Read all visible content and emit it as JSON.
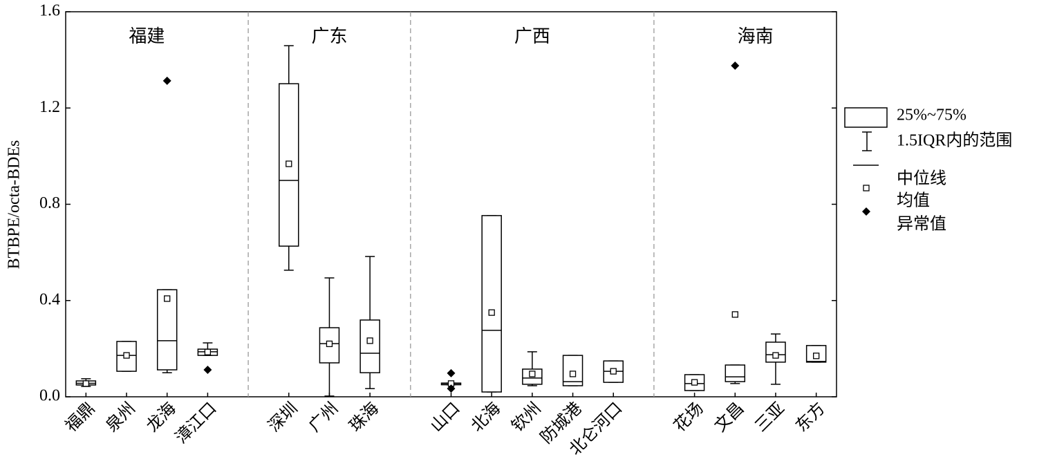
{
  "chart_data": {
    "type": "box",
    "ylabel": "BTBPE/octa-BDEs",
    "ylim": [
      0,
      1.6
    ],
    "yticks": [
      {
        "value": 0,
        "label": "0.0"
      },
      0.4,
      0.8,
      1.2,
      1.6
    ],
    "groups": [
      {
        "name": "福建",
        "categories": [
          "福鼎",
          "泉州",
          "龙海",
          "漳江口"
        ]
      },
      {
        "name": "广东",
        "categories": [
          "深圳",
          "广州",
          "珠海"
        ]
      },
      {
        "name": "广西",
        "categories": [
          "山口",
          "北海",
          "钦州",
          "防城港",
          "北仑河口"
        ]
      },
      {
        "name": "海南",
        "categories": [
          "花场",
          "文昌",
          "三亚",
          "东方"
        ]
      }
    ],
    "boxes": [
      {
        "whislo": 0.043,
        "q1": 0.049,
        "med": 0.056,
        "q3": 0.066,
        "whishi": 0.075,
        "mean": 0.055,
        "fliers": []
      },
      {
        "whislo": 0.106,
        "q1": 0.106,
        "med": 0.172,
        "q3": 0.23,
        "whishi": 0.23,
        "mean": 0.172,
        "fliers": []
      },
      {
        "whislo": 0.1,
        "q1": 0.112,
        "med": 0.233,
        "q3": 0.445,
        "whishi": 0.445,
        "mean": 0.408,
        "fliers": [
          1.313
        ]
      },
      {
        "whislo": 0.172,
        "q1": 0.172,
        "med": 0.187,
        "q3": 0.198,
        "whishi": 0.224,
        "mean": 0.186,
        "fliers": [
          0.112
        ]
      },
      {
        "whislo": 0.526,
        "q1": 0.626,
        "med": 0.899,
        "q3": 1.301,
        "whishi": 1.459,
        "mean": 0.968,
        "fliers": []
      },
      {
        "whislo": 0.003,
        "q1": 0.141,
        "med": 0.221,
        "q3": 0.287,
        "whishi": 0.494,
        "mean": 0.22,
        "fliers": []
      },
      {
        "whislo": 0.034,
        "q1": 0.1,
        "med": 0.181,
        "q3": 0.319,
        "whishi": 0.583,
        "mean": 0.233,
        "fliers": []
      },
      {
        "whislo": 0.05,
        "q1": 0.05,
        "med": 0.055,
        "q3": 0.057,
        "whishi": 0.057,
        "mean": 0.055,
        "fliers": [
          0.098,
          0.034
        ]
      },
      {
        "whislo": 0.02,
        "q1": 0.02,
        "med": 0.276,
        "q3": 0.753,
        "whishi": 0.753,
        "mean": 0.35,
        "fliers": []
      },
      {
        "whislo": 0.046,
        "q1": 0.052,
        "med": 0.078,
        "q3": 0.115,
        "whishi": 0.187,
        "mean": 0.095,
        "fliers": []
      },
      {
        "whislo": 0.046,
        "q1": 0.046,
        "med": 0.063,
        "q3": 0.172,
        "whishi": 0.172,
        "mean": 0.095,
        "fliers": []
      },
      {
        "whislo": 0.06,
        "q1": 0.06,
        "med": 0.106,
        "q3": 0.149,
        "whishi": 0.149,
        "mean": 0.106,
        "fliers": []
      },
      {
        "whislo": 0.026,
        "q1": 0.026,
        "med": 0.055,
        "q3": 0.092,
        "whishi": 0.092,
        "mean": 0.06,
        "fliers": []
      },
      {
        "whislo": 0.055,
        "q1": 0.063,
        "med": 0.083,
        "q3": 0.132,
        "whishi": 0.132,
        "mean": 0.342,
        "fliers": [
          1.376
        ]
      },
      {
        "whislo": 0.052,
        "q1": 0.144,
        "med": 0.175,
        "q3": 0.227,
        "whishi": 0.261,
        "mean": 0.172,
        "fliers": []
      },
      {
        "whislo": 0.144,
        "q1": 0.144,
        "med": 0.147,
        "q3": 0.213,
        "whishi": 0.213,
        "mean": 0.17,
        "fliers": []
      }
    ],
    "legend": {
      "box": "25%~75%",
      "whisker": "1.5IQR内的范围",
      "median": "中位线",
      "mean": "均值",
      "outlier": "异常值"
    }
  }
}
